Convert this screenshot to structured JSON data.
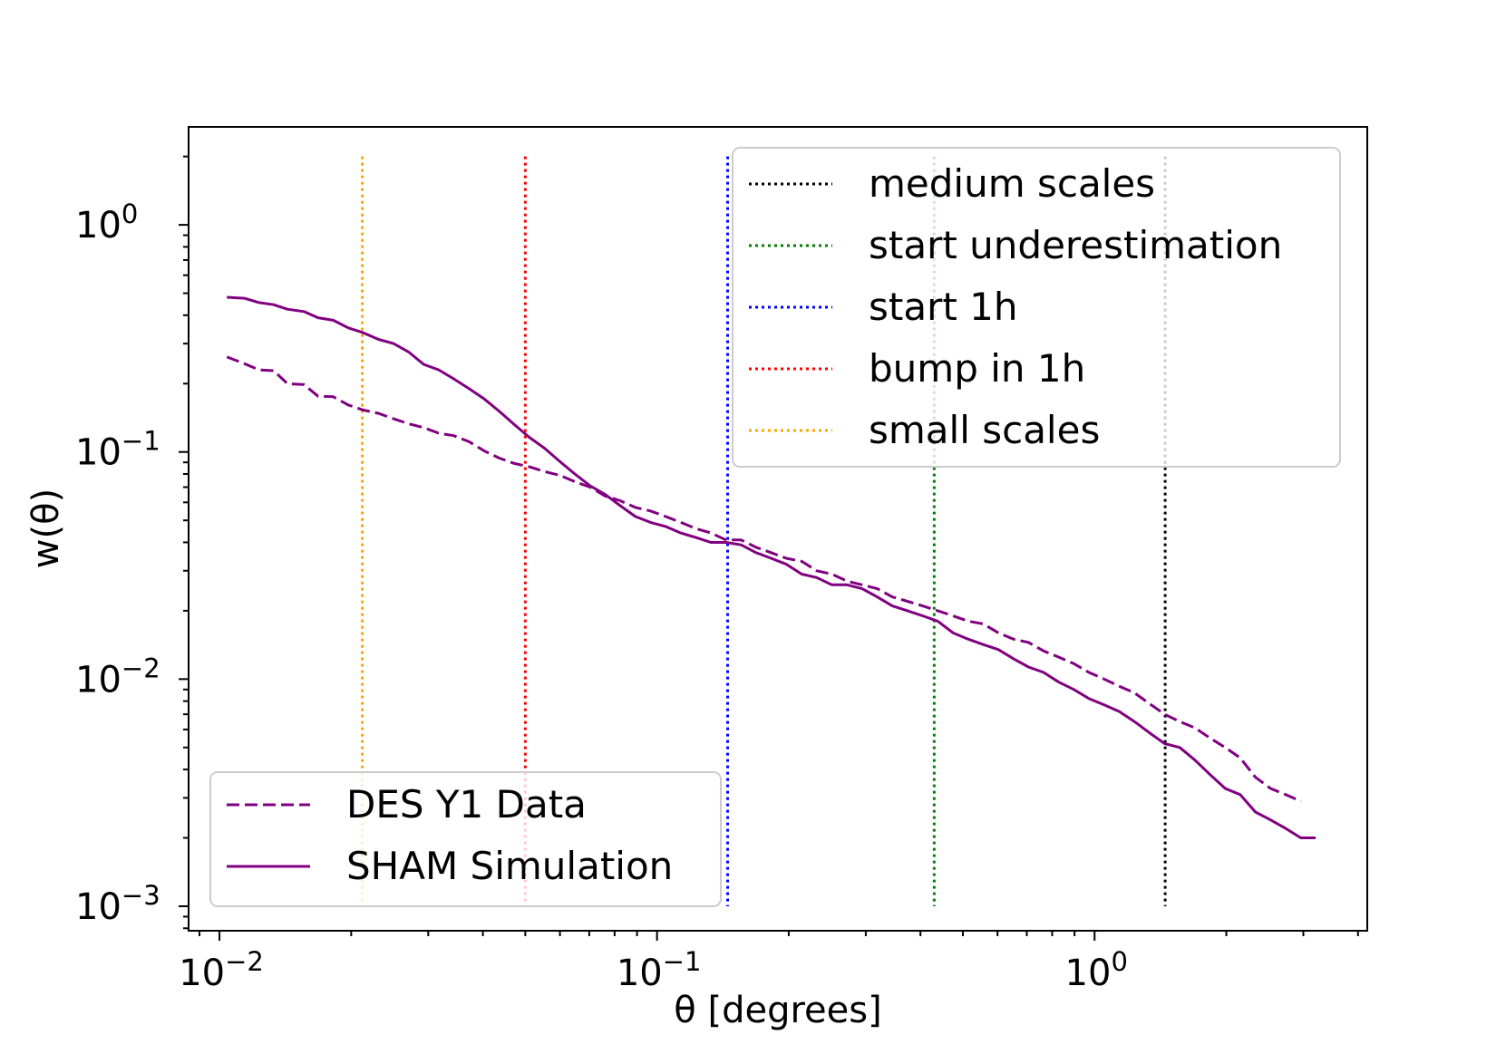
{
  "chart_data": {
    "type": "line",
    "xlabel": "θ [degrees]",
    "ylabel": "w(θ)",
    "xscale": "log",
    "yscale": "log",
    "xlim": [
      0.0085,
      4.2
    ],
    "ylim": [
      0.00078,
      2.7
    ],
    "grid": false,
    "x_ticks": [
      {
        "value": 0.01,
        "base": "10",
        "exp": "−2"
      },
      {
        "value": 0.1,
        "base": "10",
        "exp": "−1"
      },
      {
        "value": 1,
        "base": "10",
        "exp": "0"
      }
    ],
    "y_ticks": [
      {
        "value": 0.001,
        "base": "10",
        "exp": "−3"
      },
      {
        "value": 0.01,
        "base": "10",
        "exp": "−2"
      },
      {
        "value": 0.1,
        "base": "10",
        "exp": "−1"
      },
      {
        "value": 1,
        "base": "10",
        "exp": "0"
      }
    ],
    "series": [
      {
        "name": "DES Y1 Data",
        "style": "dashed",
        "color": "#800080",
        "points": [
          [
            0.0104,
            0.262
          ],
          [
            0.0114,
            0.245
          ],
          [
            0.0123,
            0.23
          ],
          [
            0.0133,
            0.228
          ],
          [
            0.0143,
            0.2
          ],
          [
            0.0156,
            0.198
          ],
          [
            0.0168,
            0.176
          ],
          [
            0.0182,
            0.175
          ],
          [
            0.0197,
            0.161
          ],
          [
            0.0213,
            0.153
          ],
          [
            0.0231,
            0.148
          ],
          [
            0.025,
            0.14
          ],
          [
            0.0271,
            0.133
          ],
          [
            0.0293,
            0.128
          ],
          [
            0.0317,
            0.121
          ],
          [
            0.0343,
            0.118
          ],
          [
            0.0372,
            0.111
          ],
          [
            0.0403,
            0.101
          ],
          [
            0.0436,
            0.094
          ],
          [
            0.0472,
            0.089
          ],
          [
            0.0511,
            0.086
          ],
          [
            0.0553,
            0.082
          ],
          [
            0.0599,
            0.079
          ],
          [
            0.0649,
            0.074
          ],
          [
            0.0703,
            0.07
          ],
          [
            0.0761,
            0.064
          ],
          [
            0.0824,
            0.061
          ],
          [
            0.0892,
            0.057
          ],
          [
            0.0966,
            0.055
          ],
          [
            0.1046,
            0.052
          ],
          [
            0.1133,
            0.049
          ],
          [
            0.1227,
            0.046
          ],
          [
            0.1328,
            0.044
          ],
          [
            0.1438,
            0.041
          ],
          [
            0.1557,
            0.041
          ],
          [
            0.1686,
            0.038
          ],
          [
            0.1826,
            0.036
          ],
          [
            0.1977,
            0.034
          ],
          [
            0.2141,
            0.033
          ],
          [
            0.2318,
            0.03
          ],
          [
            0.251,
            0.029
          ],
          [
            0.2718,
            0.027
          ],
          [
            0.2943,
            0.026
          ],
          [
            0.3187,
            0.025
          ],
          [
            0.3451,
            0.023
          ],
          [
            0.3737,
            0.022
          ],
          [
            0.4047,
            0.021
          ],
          [
            0.4382,
            0.02
          ],
          [
            0.4745,
            0.019
          ],
          [
            0.5138,
            0.018
          ],
          [
            0.5564,
            0.0175
          ],
          [
            0.6025,
            0.016
          ],
          [
            0.6524,
            0.015
          ],
          [
            0.7065,
            0.0145
          ],
          [
            0.765,
            0.0133
          ],
          [
            0.8284,
            0.0125
          ],
          [
            0.897,
            0.0117
          ],
          [
            0.9713,
            0.0107
          ],
          [
            1.0518,
            0.01
          ],
          [
            1.1389,
            0.0093
          ],
          [
            1.2332,
            0.0087
          ],
          [
            1.3354,
            0.0078
          ],
          [
            1.446,
            0.007
          ],
          [
            1.5658,
            0.0065
          ],
          [
            1.6955,
            0.0061
          ],
          [
            1.836,
            0.0055
          ],
          [
            1.9881,
            0.005
          ],
          [
            2.1528,
            0.0045
          ],
          [
            2.3311,
            0.0037
          ],
          [
            2.5243,
            0.0033
          ],
          [
            2.7334,
            0.0031
          ],
          [
            2.9598,
            0.0029
          ]
        ]
      },
      {
        "name": "SHAM Simulation",
        "style": "solid",
        "color": "#800080",
        "points": [
          [
            0.0104,
            0.48
          ],
          [
            0.0114,
            0.475
          ],
          [
            0.0123,
            0.455
          ],
          [
            0.0133,
            0.445
          ],
          [
            0.0143,
            0.425
          ],
          [
            0.0156,
            0.415
          ],
          [
            0.0168,
            0.39
          ],
          [
            0.0182,
            0.38
          ],
          [
            0.0197,
            0.352
          ],
          [
            0.0213,
            0.335
          ],
          [
            0.0231,
            0.313
          ],
          [
            0.025,
            0.3
          ],
          [
            0.0271,
            0.275
          ],
          [
            0.0293,
            0.243
          ],
          [
            0.0317,
            0.23
          ],
          [
            0.0343,
            0.21
          ],
          [
            0.0372,
            0.19
          ],
          [
            0.0403,
            0.171
          ],
          [
            0.0436,
            0.151
          ],
          [
            0.0472,
            0.132
          ],
          [
            0.0511,
            0.116
          ],
          [
            0.0553,
            0.104
          ],
          [
            0.0599,
            0.091
          ],
          [
            0.0649,
            0.08
          ],
          [
            0.0703,
            0.071
          ],
          [
            0.0761,
            0.065
          ],
          [
            0.0824,
            0.058
          ],
          [
            0.0892,
            0.052
          ],
          [
            0.0966,
            0.049
          ],
          [
            0.1046,
            0.047
          ],
          [
            0.1133,
            0.044
          ],
          [
            0.1227,
            0.042
          ],
          [
            0.1328,
            0.04
          ],
          [
            0.1438,
            0.04
          ],
          [
            0.1557,
            0.039
          ],
          [
            0.1686,
            0.036
          ],
          [
            0.1826,
            0.034
          ],
          [
            0.1977,
            0.032
          ],
          [
            0.2141,
            0.029
          ],
          [
            0.2318,
            0.028
          ],
          [
            0.251,
            0.026
          ],
          [
            0.2718,
            0.026
          ],
          [
            0.2943,
            0.025
          ],
          [
            0.3187,
            0.023
          ],
          [
            0.3451,
            0.021
          ],
          [
            0.3737,
            0.02
          ],
          [
            0.4047,
            0.019
          ],
          [
            0.4382,
            0.018
          ],
          [
            0.4745,
            0.016
          ],
          [
            0.5138,
            0.015
          ],
          [
            0.5564,
            0.0142
          ],
          [
            0.6025,
            0.0135
          ],
          [
            0.6524,
            0.0123
          ],
          [
            0.7065,
            0.0113
          ],
          [
            0.765,
            0.0107
          ],
          [
            0.8284,
            0.0097
          ],
          [
            0.897,
            0.009
          ],
          [
            0.9713,
            0.0082
          ],
          [
            1.0518,
            0.0077
          ],
          [
            1.1389,
            0.0072
          ],
          [
            1.2332,
            0.0065
          ],
          [
            1.3354,
            0.0058
          ],
          [
            1.446,
            0.0052
          ],
          [
            1.5658,
            0.005
          ],
          [
            1.6955,
            0.0044
          ],
          [
            1.836,
            0.0038
          ],
          [
            1.9881,
            0.0033
          ],
          [
            2.1528,
            0.0031
          ],
          [
            2.3311,
            0.0026
          ],
          [
            2.5243,
            0.0024
          ],
          [
            2.7334,
            0.0022
          ],
          [
            2.9598,
            0.002
          ],
          [
            3.2,
            0.002
          ]
        ]
      }
    ],
    "vlines": [
      {
        "name": "medium scales",
        "x": 1.45,
        "color": "#000000"
      },
      {
        "name": "start underestimation",
        "x": 0.43,
        "color": "#008000"
      },
      {
        "name": "start 1h",
        "x": 0.145,
        "color": "#0000ff"
      },
      {
        "name": "bump in 1h",
        "x": 0.05,
        "color": "#ff0000"
      },
      {
        "name": "small scales",
        "x": 0.0212,
        "color": "#ffa500"
      }
    ],
    "vline_yrange": [
      0.001,
      2.0
    ],
    "legend_vlines_placement": "top-right",
    "legend_series_placement": "bottom-left"
  }
}
